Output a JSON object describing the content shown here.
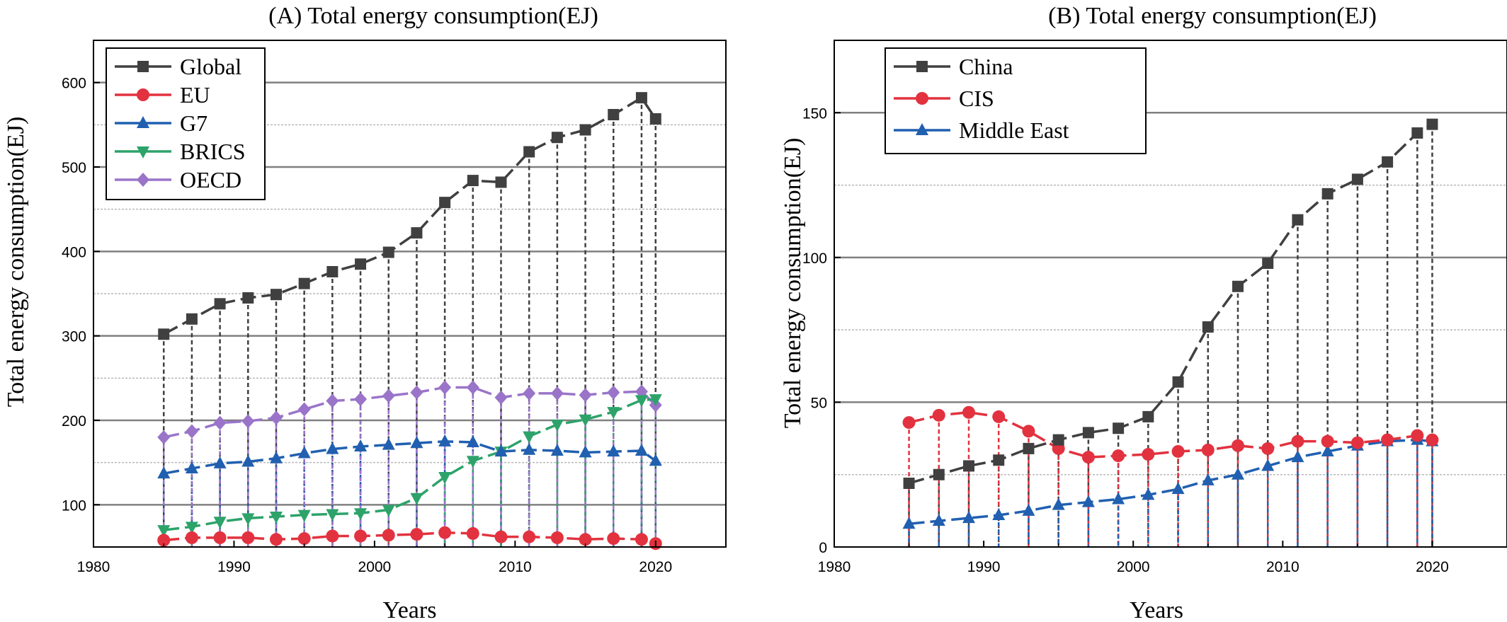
{
  "chart_data": [
    {
      "type": "line",
      "panel": "A",
      "title": "(A) Total energy consumption(EJ)",
      "xlabel": "Years",
      "ylabel": "Total energy consumption(EJ)",
      "xlim": [
        1980,
        2025
      ],
      "ylim": [
        50,
        650
      ],
      "xticks": [
        "1980",
        "1990",
        "2000",
        "2010",
        "2020"
      ],
      "yticks": [
        "100",
        "200",
        "300",
        "400",
        "500",
        "600"
      ],
      "grid": true,
      "legend_position": "top-left",
      "x": [
        1985,
        1987,
        1989,
        1991,
        1993,
        1995,
        1997,
        1999,
        2001,
        2003,
        2005,
        2007,
        2009,
        2011,
        2013,
        2015,
        2017,
        2019,
        2020
      ],
      "series": [
        {
          "name": "Global",
          "color": "#404040",
          "marker": "square",
          "values": [
            302,
            320,
            338,
            345,
            349,
            362,
            376,
            385,
            399,
            422,
            458,
            484,
            482,
            518,
            535,
            544,
            562,
            582,
            557
          ]
        },
        {
          "name": "EU",
          "color": "#e2323f",
          "marker": "circle",
          "values": [
            58,
            61,
            61,
            61,
            59,
            60,
            63,
            63,
            64,
            65,
            67,
            66,
            62,
            62,
            61,
            59,
            60,
            59,
            54
          ]
        },
        {
          "name": "G7",
          "color": "#2160b0",
          "marker": "triangle-up",
          "values": [
            137,
            143,
            149,
            151,
            155,
            161,
            166,
            169,
            171,
            173,
            175,
            174,
            163,
            165,
            164,
            162,
            163,
            164,
            152
          ]
        },
        {
          "name": "BRICS",
          "color": "#2da36a",
          "marker": "triangle-down",
          "values": [
            70,
            74,
            80,
            84,
            86,
            88,
            89,
            90,
            94,
            108,
            133,
            152,
            163,
            181,
            195,
            201,
            210,
            224,
            225
          ]
        },
        {
          "name": "OECD",
          "color": "#9a74c9",
          "marker": "diamond",
          "values": [
            180,
            187,
            197,
            199,
            203,
            213,
            223,
            225,
            229,
            233,
            239,
            239,
            227,
            232,
            232,
            230,
            233,
            234,
            218
          ]
        }
      ]
    },
    {
      "type": "line",
      "panel": "B",
      "title": "(B) Total energy consumption(EJ)",
      "xlabel": "Years",
      "ylabel": "Total energy consumption(EJ)",
      "xlim": [
        1980,
        2025
      ],
      "ylim": [
        0,
        175
      ],
      "xticks": [
        "1980",
        "1990",
        "2000",
        "2010",
        "2020"
      ],
      "yticks": [
        "0",
        "50",
        "100",
        "150"
      ],
      "grid": true,
      "legend_position": "top-left",
      "x": [
        1985,
        1987,
        1989,
        1991,
        1993,
        1995,
        1997,
        1999,
        2001,
        2003,
        2005,
        2007,
        2009,
        2011,
        2013,
        2015,
        2017,
        2019,
        2020
      ],
      "series": [
        {
          "name": "China",
          "color": "#404040",
          "marker": "square",
          "values": [
            22,
            25,
            28,
            30,
            34,
            37,
            39.5,
            41,
            45,
            57,
            76,
            90,
            98,
            113,
            122,
            127,
            133,
            143,
            146
          ]
        },
        {
          "name": "CIS",
          "color": "#e2323f",
          "marker": "circle",
          "values": [
            43,
            45.5,
            46.5,
            45,
            40,
            34,
            31,
            31.5,
            32,
            33,
            33.5,
            35,
            34,
            36.5,
            36.5,
            36,
            37,
            38.5,
            37
          ]
        },
        {
          "name": "Middle East",
          "color": "#2160b0",
          "marker": "triangle-up",
          "values": [
            8,
            9,
            10,
            11,
            12.5,
            14.5,
            15.5,
            16.5,
            18,
            20,
            23,
            25,
            28,
            31,
            33,
            35,
            36.5,
            37,
            36.5
          ]
        }
      ]
    }
  ]
}
